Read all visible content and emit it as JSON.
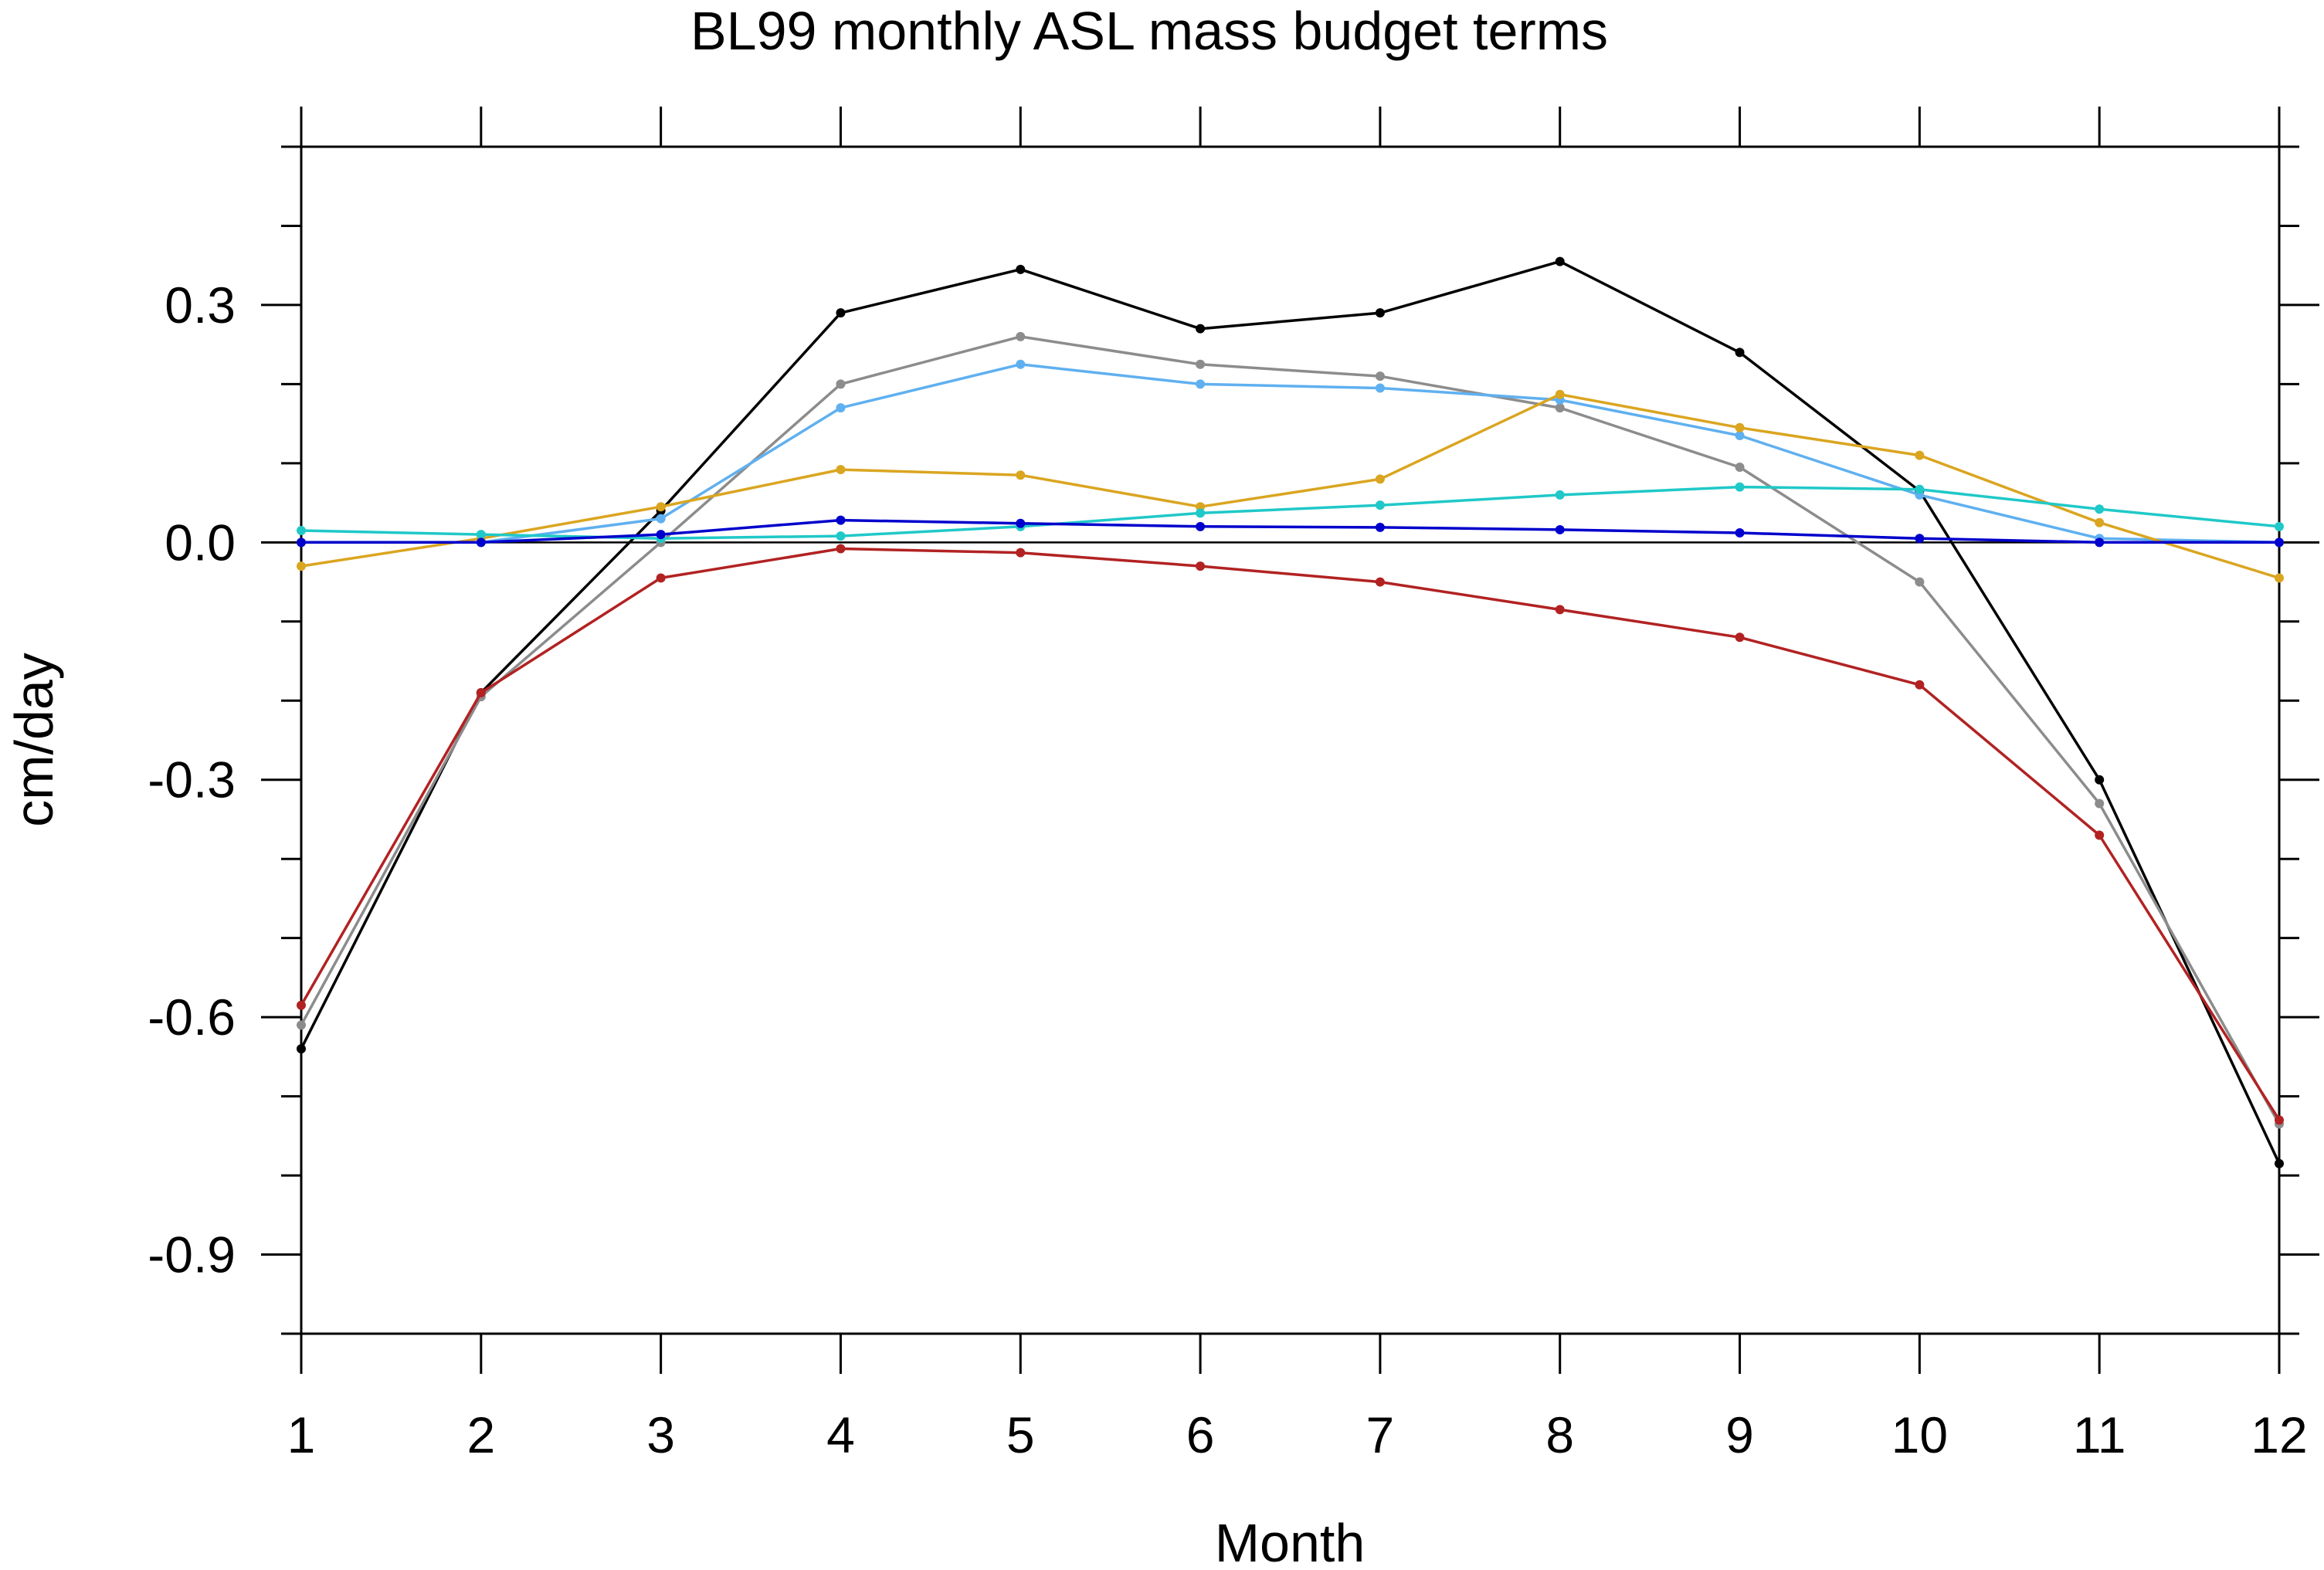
{
  "chart_data": {
    "type": "line",
    "title": "BL99 monthly ASL mass budget terms",
    "xlabel": "Month",
    "ylabel": "cm/day",
    "xlim": [
      1,
      12
    ],
    "ylim": [
      -1.0,
      0.5
    ],
    "x": [
      1,
      2,
      3,
      4,
      5,
      6,
      7,
      8,
      9,
      10,
      11,
      12
    ],
    "x_ticks": [
      1,
      2,
      3,
      4,
      5,
      6,
      7,
      8,
      9,
      10,
      11,
      12
    ],
    "x_tick_labels": [
      "1",
      "2",
      "3",
      "4",
      "5",
      "6",
      "7",
      "8",
      "9",
      "10",
      "11",
      "12"
    ],
    "y_ticks": [
      -0.9,
      -0.6,
      -0.3,
      0.0,
      0.3
    ],
    "y_tick_labels": [
      "-0.9",
      "-0.6",
      "-0.3",
      "0.0",
      "0.3"
    ],
    "y_minor_step": 0.1,
    "reference_line": 0.0,
    "grid": false,
    "legend": "none",
    "series": [
      {
        "color": "#000000",
        "values": [
          -0.64,
          -0.19,
          0.04,
          0.29,
          0.345,
          0.27,
          0.29,
          0.355,
          0.24,
          0.065,
          -0.3,
          -0.785
        ]
      },
      {
        "color": "#8c8c8c",
        "values": [
          -0.61,
          -0.195,
          0.0,
          0.2,
          0.26,
          0.225,
          0.21,
          0.17,
          0.095,
          -0.05,
          -0.33,
          -0.735
        ]
      },
      {
        "color": "#5fb0f0",
        "values": [
          0.0,
          0.0,
          0.03,
          0.17,
          0.225,
          0.2,
          0.195,
          0.18,
          0.135,
          0.06,
          0.005,
          0.0
        ]
      },
      {
        "color": "#daa520",
        "values": [
          -0.03,
          0.005,
          0.045,
          0.092,
          0.085,
          0.045,
          0.08,
          0.187,
          0.145,
          0.11,
          0.025,
          -0.045
        ]
      },
      {
        "color": "#20c8c8",
        "values": [
          0.015,
          0.01,
          0.005,
          0.008,
          0.02,
          0.037,
          0.047,
          0.06,
          0.07,
          0.067,
          0.042,
          0.02
        ]
      },
      {
        "color": "#0000cc",
        "values": [
          0.0,
          0.0,
          0.01,
          0.028,
          0.024,
          0.02,
          0.019,
          0.016,
          0.012,
          0.005,
          0.0,
          0.0
        ]
      },
      {
        "color": "#b22222",
        "values": [
          -0.585,
          -0.19,
          -0.045,
          -0.008,
          -0.013,
          -0.03,
          -0.05,
          -0.085,
          -0.12,
          -0.18,
          -0.37,
          -0.73
        ]
      }
    ]
  }
}
